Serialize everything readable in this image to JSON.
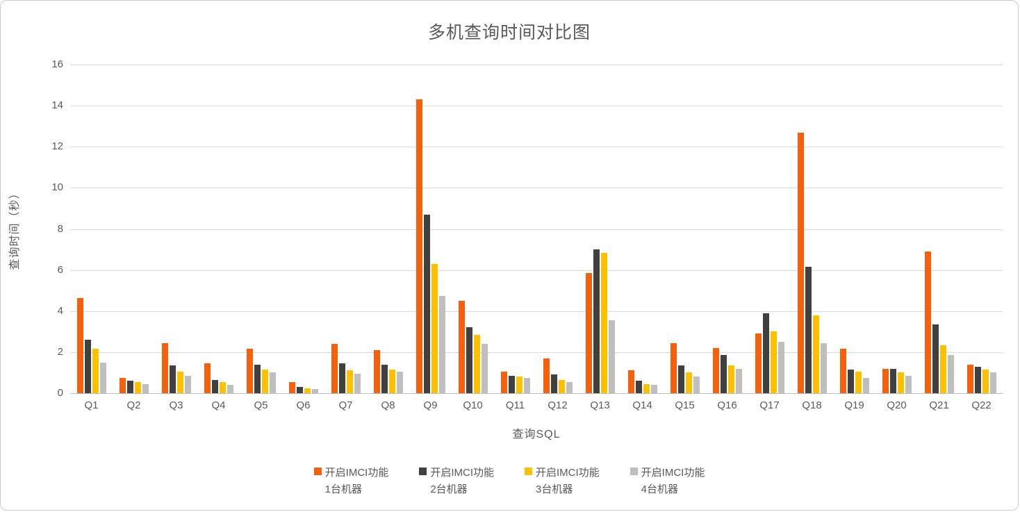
{
  "chart_data": {
    "type": "bar",
    "title": "多机查询时间对比图",
    "xlabel": "查询SQL",
    "ylabel": "查询时间（秒）",
    "ylim": [
      0,
      16
    ],
    "yticks": [
      0,
      2,
      4,
      6,
      8,
      10,
      12,
      14,
      16
    ],
    "grid": true,
    "legend_position": "bottom",
    "categories": [
      "Q1",
      "Q2",
      "Q3",
      "Q4",
      "Q5",
      "Q6",
      "Q7",
      "Q8",
      "Q9",
      "Q10",
      "Q11",
      "Q12",
      "Q13",
      "Q14",
      "Q15",
      "Q16",
      "Q17",
      "Q18",
      "Q19",
      "Q20",
      "Q21",
      "Q22"
    ],
    "series": [
      {
        "name": "开启IMCI功能 1台机器",
        "name_line1": "开启IMCI功能",
        "name_line2": "1台机器",
        "color": "#F4600C",
        "values": [
          4.65,
          0.75,
          2.45,
          1.45,
          2.15,
          0.55,
          2.4,
          2.1,
          14.3,
          4.5,
          1.05,
          1.7,
          5.85,
          1.1,
          2.45,
          2.2,
          2.9,
          12.7,
          2.15,
          1.2,
          6.9,
          1.4
        ]
      },
      {
        "name": "开启IMCI功能 2台机器",
        "name_line1": "开启IMCI功能",
        "name_line2": "2台机器",
        "color": "#404040",
        "values": [
          2.6,
          0.6,
          1.35,
          0.65,
          1.4,
          0.3,
          1.45,
          1.4,
          8.7,
          3.2,
          0.85,
          0.9,
          7.0,
          0.6,
          1.35,
          1.85,
          3.9,
          6.15,
          1.15,
          1.2,
          3.35,
          1.3
        ]
      },
      {
        "name": "开启IMCI功能 3台机器",
        "name_line1": "开启IMCI功能",
        "name_line2": "3台机器",
        "color": "#FFC000",
        "values": [
          2.15,
          0.55,
          1.05,
          0.55,
          1.15,
          0.25,
          1.1,
          1.15,
          6.3,
          2.85,
          0.8,
          0.65,
          6.85,
          0.45,
          1.0,
          1.35,
          3.0,
          3.8,
          1.05,
          1.0,
          2.35,
          1.15
        ]
      },
      {
        "name": "开启IMCI功能 4台机器",
        "name_line1": "开启IMCI功能",
        "name_line2": "4台机器",
        "color": "#BFBFBF",
        "values": [
          1.5,
          0.45,
          0.85,
          0.4,
          1.0,
          0.2,
          0.95,
          1.05,
          4.75,
          2.4,
          0.75,
          0.55,
          3.55,
          0.4,
          0.8,
          1.2,
          2.5,
          2.45,
          0.75,
          0.85,
          1.85,
          1.0
        ]
      }
    ]
  }
}
